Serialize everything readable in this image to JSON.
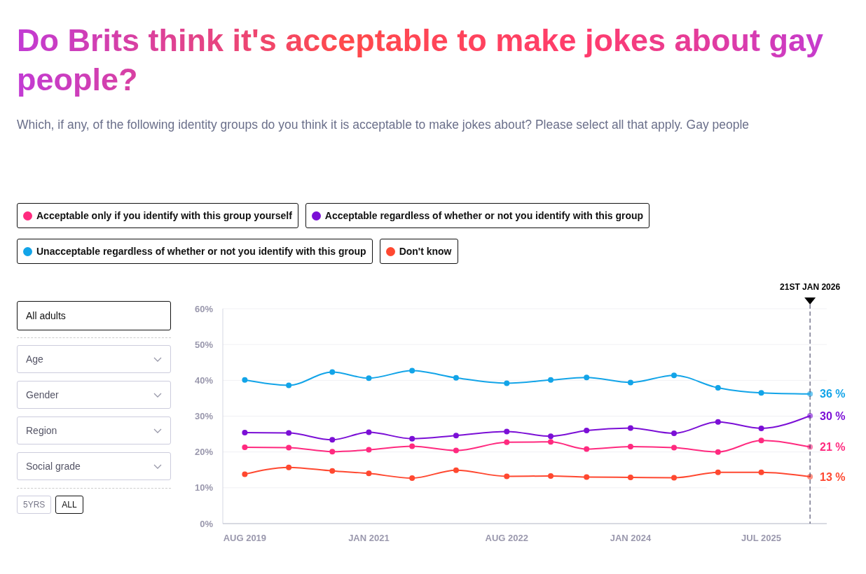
{
  "chart_data": {
    "type": "line",
    "title": "Do Brits think it's acceptable to make jokes about gay people?",
    "subtitle": "Which, if any, of the following identity groups do you think it is acceptable to make jokes about? Please select all that apply. Gay people",
    "x": [
      "2019-08",
      "2020-02",
      "2020-08",
      "2021-01",
      "2021-07",
      "2022-01",
      "2022-08",
      "2023-02",
      "2023-07",
      "2024-01",
      "2024-07",
      "2025-01",
      "2025-07",
      "2026-01-21"
    ],
    "series": [
      {
        "name": "Acceptable only if you identify with this group yourself",
        "color": "#ff2a7f",
        "values": [
          21.3,
          21.2,
          20.1,
          20.6,
          21.6,
          20.4,
          22.7,
          22.8,
          20.8,
          21.5,
          21.2,
          20.0,
          23.2,
          21.4
        ],
        "value_labels": [
          null,
          null,
          null,
          null,
          null,
          null,
          null,
          null,
          null,
          null,
          null,
          null,
          null,
          "21 %"
        ]
      },
      {
        "name": "Acceptable regardless of whether or not you identify with this group",
        "color": "#7b0fd6",
        "values": [
          25.4,
          25.3,
          23.4,
          25.5,
          23.7,
          24.6,
          25.7,
          24.4,
          26.0,
          26.7,
          25.2,
          28.4,
          26.6,
          30.1
        ],
        "value_labels": [
          null,
          null,
          null,
          null,
          null,
          null,
          null,
          null,
          null,
          null,
          null,
          null,
          null,
          "30 %"
        ]
      },
      {
        "name": "Unacceptable regardless of whether or not you identify with this group",
        "color": "#12a4e8",
        "values": [
          40.1,
          38.6,
          42.3,
          40.6,
          42.7,
          40.7,
          39.2,
          40.1,
          40.8,
          39.4,
          41.4,
          37.9,
          36.5,
          36.2
        ],
        "value_labels": [
          null,
          null,
          null,
          null,
          null,
          null,
          null,
          null,
          null,
          null,
          null,
          null,
          null,
          "36 %"
        ]
      },
      {
        "name": "Don't know",
        "color": "#ff4830",
        "values": [
          13.8,
          15.7,
          14.7,
          14.0,
          12.7,
          14.9,
          13.2,
          13.3,
          13.0,
          12.9,
          12.8,
          14.3,
          14.3,
          13.1
        ],
        "value_labels": [
          null,
          null,
          null,
          null,
          null,
          null,
          null,
          null,
          null,
          null,
          null,
          null,
          null,
          "13 %"
        ]
      }
    ],
    "xlim": [
      "2019-05",
      "2026-04"
    ],
    "xticks": [
      {
        "value": "2019-08",
        "label": "AUG 2019"
      },
      {
        "value": "2021-01",
        "label": "JAN 2021"
      },
      {
        "value": "2022-08",
        "label": "AUG 2022"
      },
      {
        "value": "2024-01",
        "label": "JAN 2024"
      },
      {
        "value": "2025-07",
        "label": "JUL 2025"
      }
    ],
    "ylim": [
      0,
      60
    ],
    "yticks": [
      {
        "value": 0,
        "label": "0%"
      },
      {
        "value": 10,
        "label": "10%"
      },
      {
        "value": 20,
        "label": "20%"
      },
      {
        "value": 30,
        "label": "30%"
      },
      {
        "value": 40,
        "label": "40%"
      },
      {
        "value": 50,
        "label": "50%"
      },
      {
        "value": 60,
        "label": "60%"
      }
    ],
    "ref_lines": [
      {
        "axis": "x",
        "value": "2026-01-21",
        "label": "21ST JAN 2026",
        "color": "#333355",
        "line_style": "dashed"
      }
    ],
    "grid": "y",
    "legend": "top",
    "marker": "circle",
    "line_style": "solid",
    "annotations": [
      "All adults",
      "Age",
      "Gender",
      "Region",
      "Social grade",
      "5YRS",
      "ALL"
    ]
  }
}
